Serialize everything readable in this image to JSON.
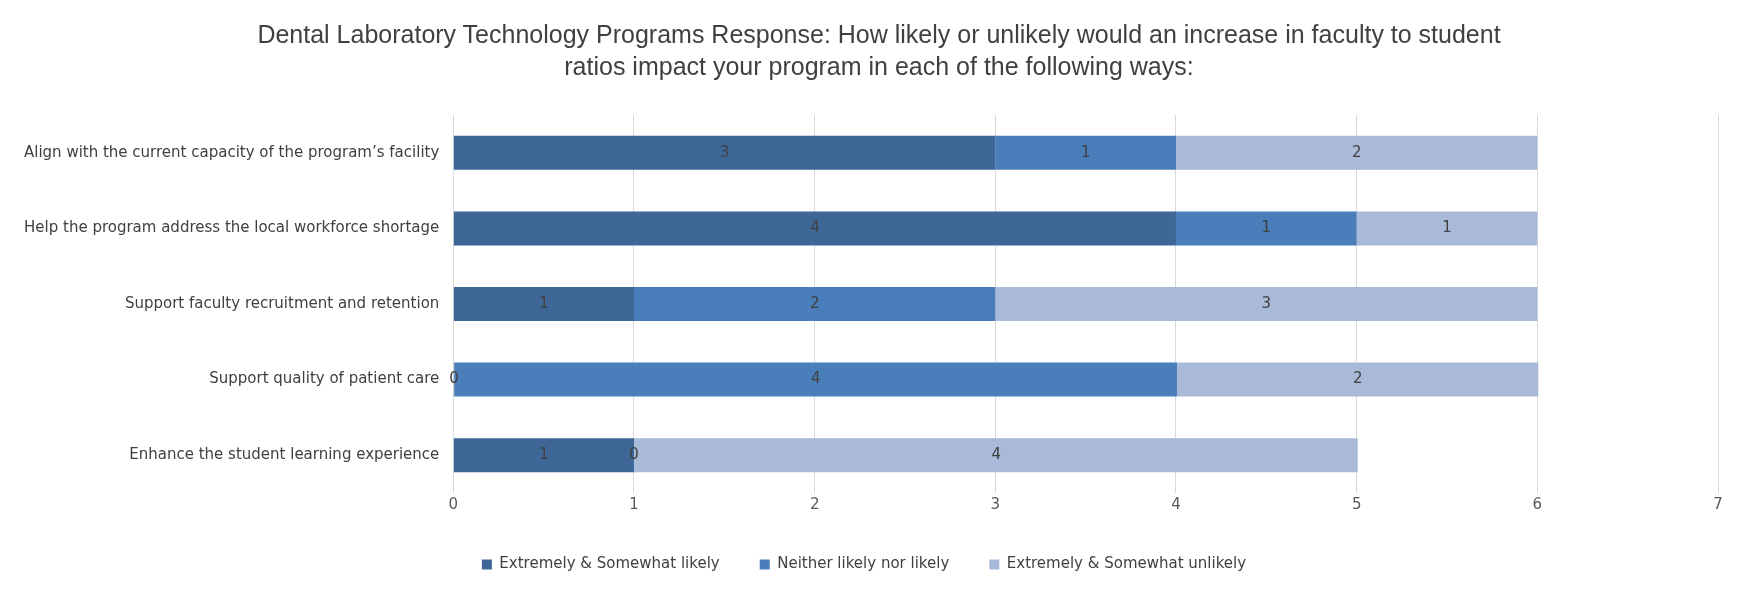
{
  "chart_data": {
    "type": "bar",
    "orientation": "horizontal",
    "stacked": true,
    "title": "Dental Laboratory Technology Programs Response: How likely or unlikely would an increase in faculty to student ratios impact your program in each of the following ways:",
    "categories": [
      "Align with the current capacity of the program’s facility",
      "Help the program address the local workforce shortage",
      "Support faculty recruitment and retention",
      "Support quality of patient care",
      "Enhance the student learning experience"
    ],
    "series": [
      {
        "name": "Extremely & Somewhat likely",
        "color": "#3e6697",
        "values": [
          3,
          4,
          1,
          0,
          1
        ]
      },
      {
        "name": "Neither likely nor likely",
        "color": "#4a7ebb",
        "values": [
          1,
          1,
          2,
          4,
          0
        ]
      },
      {
        "name": "Extremely & Somewhat unlikely",
        "color": "#a9b9d8",
        "values": [
          2,
          1,
          3,
          2,
          4
        ]
      }
    ],
    "xlim": [
      0,
      7
    ],
    "xticks": [
      0,
      1,
      2,
      3,
      4,
      5,
      6,
      7
    ],
    "grid": "x",
    "legend": "bottom",
    "data_labels": true
  }
}
